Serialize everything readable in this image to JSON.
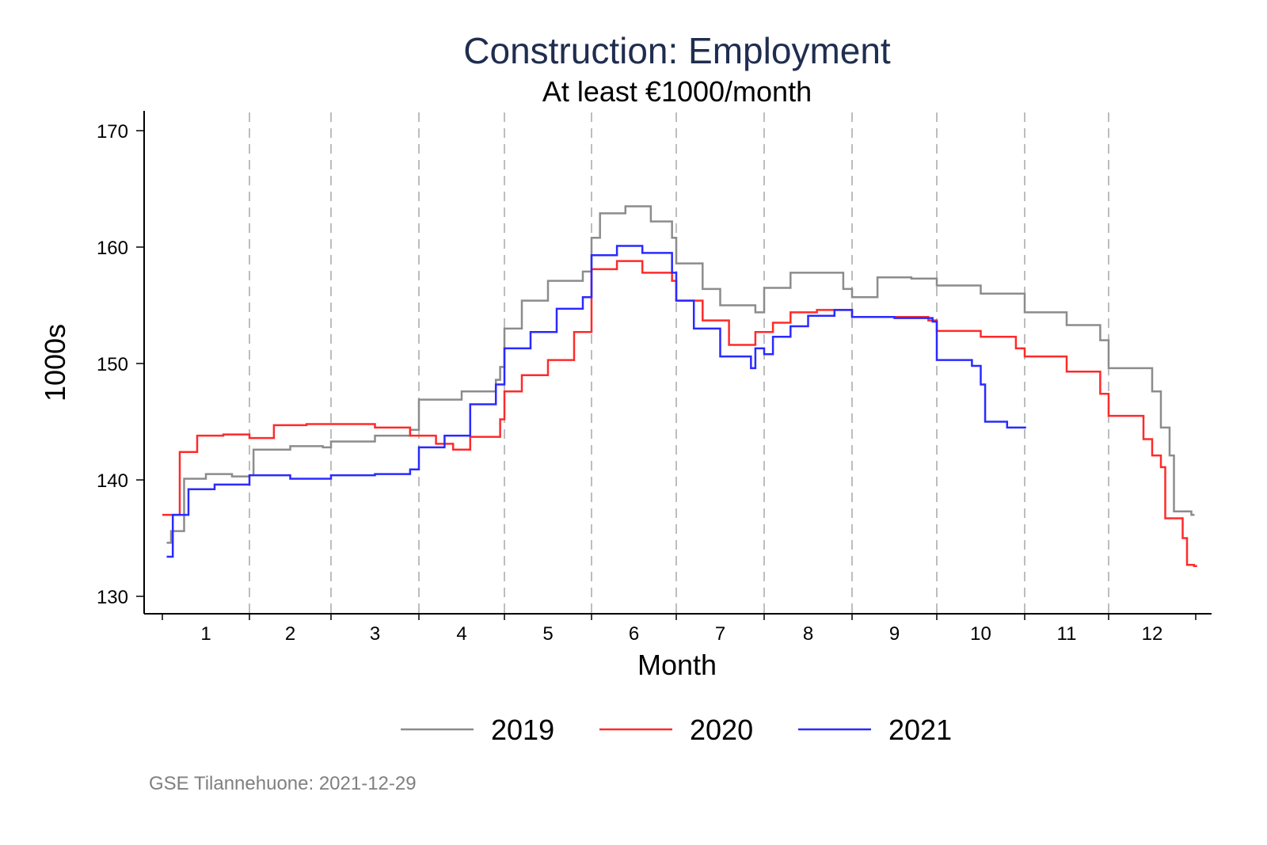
{
  "chart_data": {
    "type": "line",
    "title": "Construction: Employment",
    "subtitle": "At least €1000/month",
    "xlabel": "Month",
    "ylabel": "1000s",
    "xlim": [
      1,
      13
    ],
    "ylim": [
      128.5,
      171.5
    ],
    "yticks": [
      130,
      140,
      150,
      160,
      170
    ],
    "xtick_labels": [
      "1",
      "2",
      "3",
      "4",
      "5",
      "6",
      "7",
      "8",
      "9",
      "10",
      "11",
      "12"
    ],
    "month_boundaries": [
      1,
      2,
      3,
      4,
      5,
      6,
      7,
      8,
      9,
      10,
      11,
      12,
      13
    ],
    "grid": "vertical dashed lines at month boundaries",
    "legend_position": "bottom",
    "line_style": "step",
    "series": [
      {
        "name": "2019",
        "color": "#8c8c8c",
        "x": [
          1.05,
          1.1,
          1.25,
          1.5,
          1.8,
          2.0,
          2.05,
          2.5,
          2.9,
          3.0,
          3.5,
          3.9,
          4.0,
          4.5,
          4.9,
          4.95,
          5.0,
          5.2,
          5.5,
          5.9,
          6.0,
          6.1,
          6.4,
          6.7,
          6.95,
          7.0,
          7.3,
          7.5,
          7.9,
          8.0,
          8.3,
          8.6,
          8.9,
          9.0,
          9.3,
          9.7,
          10.0,
          10.5,
          11.0,
          11.5,
          11.9,
          12.0,
          12.5,
          12.6,
          12.7,
          12.75,
          12.95
        ],
        "y": [
          134.6,
          135.6,
          140.1,
          140.5,
          140.3,
          140.4,
          142.6,
          142.9,
          142.8,
          143.3,
          143.8,
          144.3,
          146.9,
          147.6,
          148.6,
          149.7,
          153.0,
          155.4,
          157.1,
          157.9,
          160.8,
          162.9,
          163.5,
          162.2,
          160.8,
          158.6,
          156.4,
          155.0,
          154.4,
          156.5,
          157.8,
          157.8,
          156.4,
          155.7,
          157.4,
          157.3,
          156.7,
          156.0,
          154.4,
          153.3,
          152.0,
          149.6,
          147.6,
          144.5,
          142.1,
          137.3,
          137.0
        ]
      },
      {
        "name": "2020",
        "color": "#ff2a2a",
        "x": [
          1.0,
          1.15,
          1.2,
          1.4,
          1.7,
          2.0,
          2.3,
          2.7,
          3.0,
          3.5,
          3.9,
          4.2,
          4.4,
          4.6,
          4.95,
          5.0,
          5.2,
          5.5,
          5.8,
          5.95,
          6.0,
          6.3,
          6.6,
          6.95,
          7.0,
          7.3,
          7.6,
          7.85,
          7.9,
          8.1,
          8.3,
          8.6,
          9.0,
          9.5,
          9.9,
          10.0,
          10.5,
          10.9,
          11.0,
          11.5,
          11.9,
          12.0,
          12.4,
          12.5,
          12.6,
          12.65,
          12.85,
          12.9,
          12.98
        ],
        "y": [
          137.0,
          137.0,
          142.4,
          143.8,
          143.9,
          143.6,
          144.7,
          144.8,
          144.8,
          144.5,
          143.8,
          143.1,
          142.6,
          143.7,
          145.2,
          147.6,
          149.0,
          150.3,
          152.7,
          152.7,
          158.1,
          158.8,
          157.8,
          157.1,
          155.4,
          153.7,
          151.6,
          151.6,
          152.7,
          153.5,
          154.4,
          154.6,
          154.0,
          154.0,
          153.7,
          152.8,
          152.3,
          151.3,
          150.6,
          149.3,
          147.4,
          145.5,
          143.5,
          142.1,
          141.1,
          136.7,
          135.0,
          132.7,
          132.6
        ]
      },
      {
        "name": "2021",
        "color": "#2a2aff",
        "x": [
          1.05,
          1.12,
          1.3,
          1.6,
          1.95,
          2.0,
          2.5,
          2.9,
          3.0,
          3.5,
          3.9,
          4.0,
          4.3,
          4.6,
          4.9,
          5.0,
          5.3,
          5.6,
          5.9,
          6.0,
          6.3,
          6.6,
          6.95,
          7.0,
          7.2,
          7.5,
          7.85,
          7.9,
          8.0,
          8.1,
          8.3,
          8.5,
          8.8,
          9.0,
          9.5,
          9.95,
          10.0,
          10.4,
          10.5,
          10.55,
          10.8,
          10.98
        ],
        "y": [
          133.4,
          137.0,
          139.2,
          139.6,
          139.6,
          140.4,
          140.1,
          140.1,
          140.4,
          140.5,
          140.9,
          142.8,
          143.8,
          146.5,
          148.2,
          151.3,
          152.7,
          154.7,
          155.7,
          159.3,
          160.1,
          159.5,
          157.8,
          155.4,
          153.0,
          150.6,
          149.6,
          151.3,
          150.8,
          152.3,
          153.2,
          154.1,
          154.6,
          154.0,
          153.9,
          153.6,
          150.3,
          149.8,
          148.2,
          145.0,
          144.5,
          144.5
        ]
      }
    ],
    "note": "GSE Tilannehuone: 2021-12-29"
  }
}
